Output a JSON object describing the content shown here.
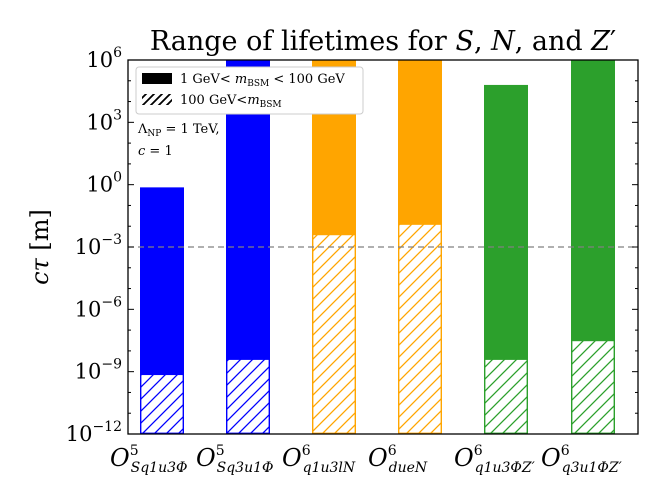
{
  "chart_data": {
    "type": "bar",
    "title": "Range of lifetimes for S, N, and Z′",
    "ylabel": "cτ [m]",
    "xlabel": "",
    "yscale": "log",
    "ylim_exponents": [
      -12,
      6
    ],
    "yticks": [
      {
        "exp": 6,
        "label": "10^6"
      },
      {
        "exp": 3,
        "label": "10^3"
      },
      {
        "exp": 0,
        "label": "10^0"
      },
      {
        "exp": -3,
        "label": "10^-3"
      },
      {
        "exp": -6,
        "label": "10^-6"
      },
      {
        "exp": -9,
        "label": "10^-9"
      },
      {
        "exp": -12,
        "label": "10^-12"
      }
    ],
    "categories": [
      {
        "op": "O",
        "sup": "5",
        "sub": "Sq1u3Φ",
        "color": "#0000ff",
        "low_exp": -12,
        "mid_exp": -9.13,
        "high_exp": -0.13
      },
      {
        "op": "O",
        "sup": "5",
        "sub": "Sq3u1Φ",
        "color": "#0000ff",
        "low_exp": -12,
        "mid_exp": -8.4,
        "high_exp": 6
      },
      {
        "op": "O",
        "sup": "6",
        "sub": "q1u3lN",
        "color": "#ffa500",
        "low_exp": -12,
        "mid_exp": -2.4,
        "high_exp": 6
      },
      {
        "op": "O",
        "sup": "6",
        "sub": "dueN",
        "color": "#ffa500",
        "low_exp": -12,
        "mid_exp": -1.9,
        "high_exp": 6
      },
      {
        "op": "O",
        "sup": "6",
        "sub": "q1u3ΦZ′",
        "color": "#2ca02c",
        "low_exp": -12,
        "mid_exp": -8.4,
        "high_exp": 4.8
      },
      {
        "op": "O",
        "sup": "6",
        "sub": "q3u1ΦZ′",
        "color": "#2ca02c",
        "low_exp": -12,
        "mid_exp": -7.5,
        "high_exp": 6
      }
    ],
    "reference_line": {
      "exp": -3,
      "style": "dashed",
      "color": "#808080"
    },
    "legend": {
      "position": "top-left",
      "entries": [
        {
          "fill": "solid",
          "label": "1 GeV< m_BSM < 100 GeV"
        },
        {
          "fill": "hatch",
          "label": "100 GeV<m_BSM"
        }
      ]
    },
    "annotations": [
      "Λ_NP = 1 TeV,",
      "c = 1"
    ]
  }
}
